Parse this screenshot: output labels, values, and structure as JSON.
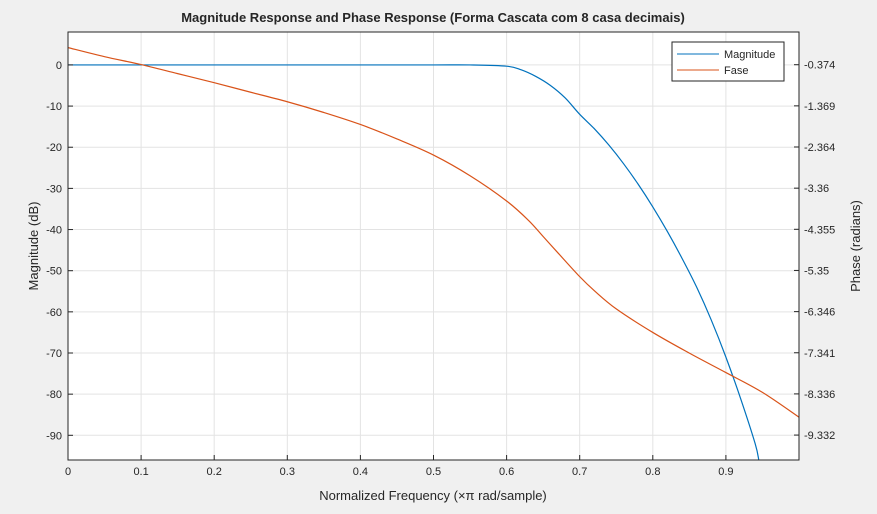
{
  "chart_data": {
    "type": "line",
    "title": "Magnitude Response and Phase Response (Forma Cascata com 8 casa decimais)",
    "xlabel": "Normalized Frequency (×π rad/sample)",
    "ylabel_left": "Magnitude (dB)",
    "ylabel_right": "Phase (radians)",
    "xlim": [
      0,
      1
    ],
    "ylim_left": [
      -96,
      8
    ],
    "ylim_right": [
      -9.935,
      0.417
    ],
    "x_ticks": [
      "0",
      "0.1",
      "0.2",
      "0.3",
      "0.4",
      "0.5",
      "0.6",
      "0.7",
      "0.8",
      "0.9"
    ],
    "x_tick_values": [
      0,
      0.1,
      0.2,
      0.3,
      0.4,
      0.5,
      0.6,
      0.7,
      0.8,
      0.9
    ],
    "y_left_ticks": [
      "0",
      "-10",
      "-20",
      "-30",
      "-40",
      "-50",
      "-60",
      "-70",
      "-80",
      "-90"
    ],
    "y_left_tick_values": [
      0,
      -10,
      -20,
      -30,
      -40,
      -50,
      -60,
      -70,
      -80,
      -90
    ],
    "y_right_ticks": [
      "-0.374",
      "-1.369",
      "-2.364",
      "-3.36",
      "-4.355",
      "-5.35",
      "-6.346",
      "-7.341",
      "-8.336",
      "-9.332"
    ],
    "y_right_tick_values": [
      -0.374,
      -1.369,
      -2.364,
      -3.36,
      -4.355,
      -5.35,
      -6.346,
      -7.341,
      -8.336,
      -9.332
    ],
    "grid": true,
    "legend_position": "top-right",
    "series": [
      {
        "name": "Magnitude",
        "axis": "left",
        "color": "#0072bd",
        "x": [
          0,
          0.1,
          0.2,
          0.3,
          0.4,
          0.5,
          0.55,
          0.6,
          0.62,
          0.64,
          0.66,
          0.68,
          0.7,
          0.72,
          0.74,
          0.76,
          0.78,
          0.8,
          0.82,
          0.84,
          0.86,
          0.88,
          0.9,
          0.92,
          0.94,
          0.945
        ],
        "y": [
          0,
          0,
          0,
          0,
          0,
          0,
          0,
          -0.3,
          -1.2,
          -2.8,
          -5,
          -8,
          -12,
          -15.5,
          -19.5,
          -24,
          -29,
          -34.5,
          -40.5,
          -47,
          -54,
          -62,
          -71,
          -81,
          -92,
          -96
        ]
      },
      {
        "name": "Fase",
        "axis": "right",
        "color": "#d95319",
        "x": [
          0,
          0.05,
          0.1,
          0.15,
          0.2,
          0.25,
          0.3,
          0.35,
          0.4,
          0.45,
          0.5,
          0.55,
          0.6,
          0.63,
          0.65,
          0.67,
          0.7,
          0.72,
          0.75,
          0.8,
          0.85,
          0.9,
          0.95,
          1.0
        ],
        "y": [
          0.04,
          -0.18,
          -0.37,
          -0.59,
          -0.81,
          -1.04,
          -1.27,
          -1.53,
          -1.82,
          -2.17,
          -2.56,
          -3.06,
          -3.67,
          -4.14,
          -4.53,
          -4.92,
          -5.5,
          -5.84,
          -6.28,
          -6.85,
          -7.35,
          -7.82,
          -8.3,
          -8.9
        ]
      }
    ]
  }
}
